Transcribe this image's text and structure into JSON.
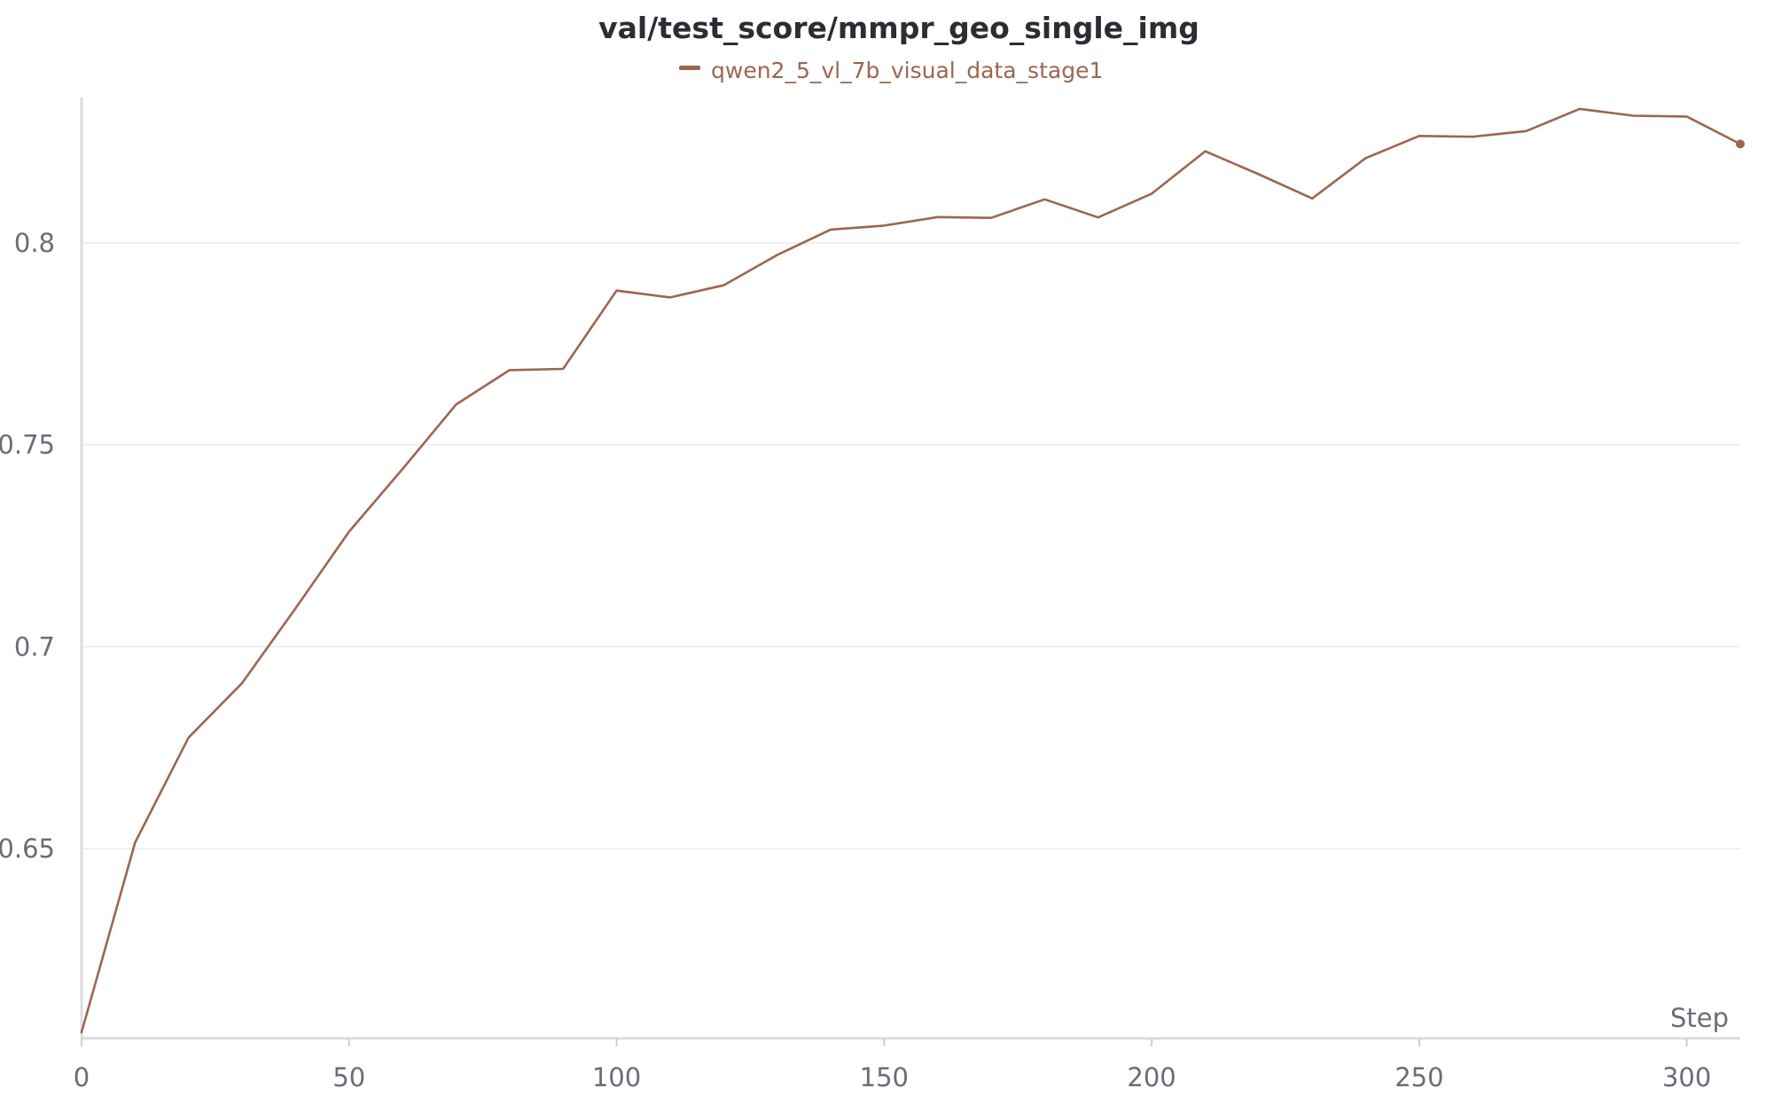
{
  "chart_data": {
    "type": "line",
    "title": "val/test_score/mmpr_geo_single_img",
    "xlabel": "Step",
    "ylabel": "",
    "xlim": [
      0,
      310
    ],
    "ylim": [
      0.603,
      0.836
    ],
    "x_ticks": [
      0,
      50,
      100,
      150,
      200,
      250,
      300
    ],
    "y_ticks": [
      0.65,
      0.7,
      0.75,
      0.8
    ],
    "grid": "horizontal",
    "legend_position": "top-center",
    "series": [
      {
        "name": "qwen2_5_vl_7b_visual_data_stage1",
        "color": "#9c6650",
        "x": [
          0,
          10,
          20,
          30,
          40,
          50,
          60,
          70,
          80,
          90,
          100,
          110,
          120,
          130,
          140,
          150,
          160,
          170,
          180,
          190,
          200,
          210,
          220,
          230,
          240,
          250,
          260,
          270,
          280,
          290,
          300,
          310
        ],
        "y": [
          0.6045,
          0.6515,
          0.6775,
          0.691,
          0.7095,
          0.7285,
          0.744,
          0.76,
          0.7685,
          0.7688,
          0.7882,
          0.7865,
          0.7895,
          0.797,
          0.8033,
          0.8043,
          0.8064,
          0.8062,
          0.8108,
          0.8063,
          0.8122,
          0.8227,
          0.817,
          0.811,
          0.821,
          0.8265,
          0.8263,
          0.8277,
          0.8332,
          0.8315,
          0.8313,
          0.8245
        ]
      }
    ]
  }
}
